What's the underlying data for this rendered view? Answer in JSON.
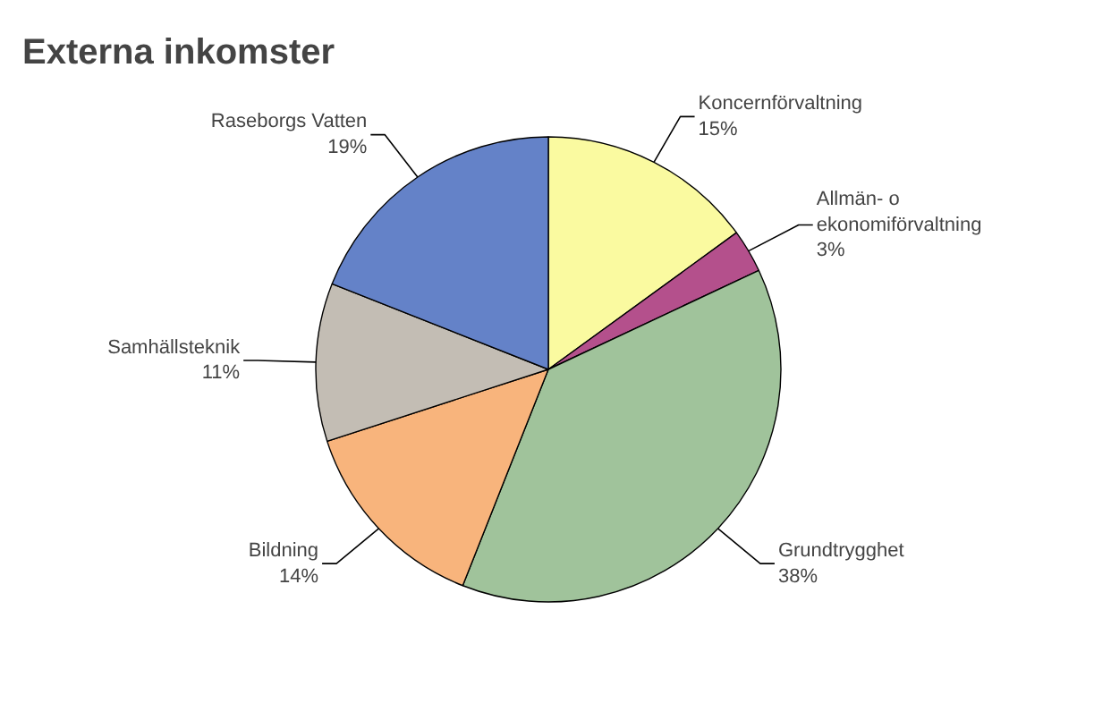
{
  "chart_data": {
    "type": "pie",
    "title": "Externa inkomster",
    "categories": [
      "Koncernförvaltning",
      "Allmän- o ekonomiförvaltning",
      "Grundtrygghet",
      "Bildning",
      "Samhällsteknik",
      "Raseborgs Vatten"
    ],
    "values": [
      15,
      3,
      38,
      14,
      11,
      19
    ],
    "value_labels": [
      "15%",
      "3%",
      "38%",
      "14%",
      "11%",
      "19%"
    ],
    "colors": [
      "#fafaa0",
      "#b4508c",
      "#a0c39b",
      "#f8b47c",
      "#c3bdb4",
      "#6482c8"
    ]
  }
}
